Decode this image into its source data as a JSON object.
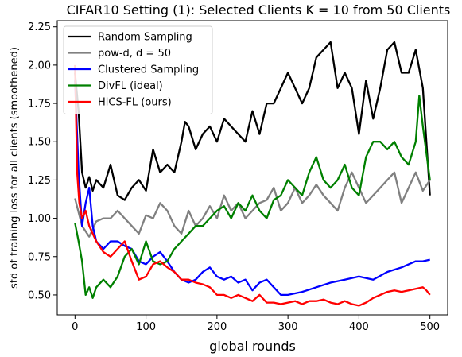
{
  "chart_data": {
    "type": "line",
    "title": "CIFAR10 Setting (1): Selected Clients K = 10 from 50 Clients",
    "xlabel": "global rounds",
    "ylabel": "std of training loss for all clients (smoothened)",
    "xlim": [
      -25,
      525
    ],
    "ylim": [
      0.37,
      2.29
    ],
    "xticks": [
      0,
      100,
      200,
      300,
      400,
      500
    ],
    "yticks": [
      0.5,
      0.75,
      1.0,
      1.25,
      1.5,
      1.75,
      2.0,
      2.25
    ],
    "ytick_labels": [
      "0.50",
      "0.75",
      "1.00",
      "1.25",
      "1.50",
      "1.75",
      "2.00",
      "2.25"
    ],
    "legend_position": "upper-left",
    "series": [
      {
        "name": "Random Sampling",
        "color": "#000000",
        "x": [
          0,
          5,
          10,
          15,
          20,
          25,
          30,
          40,
          50,
          60,
          70,
          80,
          90,
          100,
          110,
          120,
          130,
          140,
          150,
          155,
          160,
          170,
          180,
          190,
          200,
          210,
          220,
          230,
          240,
          250,
          260,
          270,
          280,
          290,
          300,
          310,
          320,
          330,
          340,
          350,
          360,
          370,
          380,
          390,
          400,
          410,
          420,
          430,
          440,
          450,
          460,
          470,
          480,
          490,
          500
        ],
        "y": [
          1.95,
          1.7,
          1.3,
          1.2,
          1.27,
          1.18,
          1.25,
          1.2,
          1.35,
          1.15,
          1.12,
          1.2,
          1.25,
          1.18,
          1.45,
          1.3,
          1.35,
          1.3,
          1.5,
          1.63,
          1.6,
          1.45,
          1.55,
          1.6,
          1.5,
          1.65,
          1.6,
          1.55,
          1.5,
          1.7,
          1.55,
          1.75,
          1.75,
          1.85,
          1.95,
          1.85,
          1.75,
          1.85,
          2.05,
          2.1,
          2.15,
          1.85,
          1.95,
          1.85,
          1.55,
          1.9,
          1.65,
          1.85,
          2.1,
          2.15,
          1.95,
          1.95,
          2.1,
          1.85,
          1.15
        ]
      },
      {
        "name": "pow-d, d = 50",
        "color": "#808080",
        "x": [
          0,
          10,
          20,
          30,
          40,
          50,
          60,
          70,
          80,
          90,
          100,
          110,
          120,
          130,
          140,
          150,
          160,
          170,
          180,
          190,
          200,
          210,
          220,
          230,
          240,
          250,
          260,
          270,
          280,
          290,
          300,
          310,
          320,
          330,
          340,
          350,
          360,
          370,
          380,
          390,
          400,
          410,
          420,
          430,
          440,
          450,
          460,
          470,
          480,
          490,
          500
        ],
        "y": [
          1.13,
          0.95,
          0.88,
          0.98,
          1.0,
          1.0,
          1.05,
          1.0,
          0.95,
          0.9,
          1.02,
          1.0,
          1.1,
          1.05,
          0.95,
          0.9,
          1.05,
          0.95,
          1.0,
          1.08,
          1.0,
          1.15,
          1.05,
          1.1,
          1.0,
          1.05,
          1.1,
          1.12,
          1.2,
          1.05,
          1.1,
          1.2,
          1.1,
          1.15,
          1.22,
          1.15,
          1.1,
          1.05,
          1.2,
          1.3,
          1.2,
          1.1,
          1.15,
          1.2,
          1.25,
          1.3,
          1.1,
          1.2,
          1.3,
          1.18,
          1.25
        ]
      },
      {
        "name": "Clustered Sampling",
        "color": "#0000ff",
        "x": [
          0,
          5,
          10,
          15,
          20,
          25,
          30,
          40,
          50,
          60,
          70,
          80,
          90,
          100,
          110,
          120,
          130,
          140,
          150,
          160,
          170,
          180,
          190,
          200,
          210,
          220,
          230,
          240,
          250,
          260,
          270,
          280,
          290,
          300,
          320,
          340,
          360,
          380,
          400,
          420,
          440,
          460,
          480,
          490,
          500
        ],
        "y": [
          1.9,
          1.3,
          0.95,
          1.1,
          1.2,
          0.95,
          0.85,
          0.8,
          0.85,
          0.85,
          0.82,
          0.8,
          0.72,
          0.7,
          0.75,
          0.78,
          0.72,
          0.65,
          0.6,
          0.58,
          0.6,
          0.65,
          0.68,
          0.62,
          0.6,
          0.62,
          0.58,
          0.6,
          0.53,
          0.58,
          0.6,
          0.55,
          0.5,
          0.5,
          0.52,
          0.55,
          0.58,
          0.6,
          0.62,
          0.6,
          0.65,
          0.68,
          0.72,
          0.72,
          0.73
        ]
      },
      {
        "name": "DivFL (ideal)",
        "color": "#008000",
        "x": [
          0,
          5,
          10,
          15,
          20,
          25,
          30,
          40,
          50,
          60,
          70,
          80,
          90,
          100,
          110,
          120,
          130,
          140,
          150,
          160,
          170,
          180,
          190,
          200,
          210,
          220,
          230,
          240,
          250,
          260,
          270,
          280,
          290,
          300,
          310,
          320,
          330,
          340,
          350,
          360,
          370,
          380,
          390,
          400,
          410,
          420,
          430,
          440,
          450,
          460,
          470,
          480,
          485,
          490,
          500
        ],
        "y": [
          0.97,
          0.85,
          0.72,
          0.5,
          0.55,
          0.48,
          0.55,
          0.6,
          0.55,
          0.62,
          0.75,
          0.8,
          0.7,
          0.85,
          0.72,
          0.7,
          0.72,
          0.8,
          0.85,
          0.9,
          0.95,
          0.95,
          1.0,
          1.05,
          1.08,
          1.0,
          1.1,
          1.05,
          1.15,
          1.05,
          1.0,
          1.12,
          1.15,
          1.25,
          1.2,
          1.15,
          1.3,
          1.4,
          1.25,
          1.2,
          1.25,
          1.35,
          1.2,
          1.15,
          1.4,
          1.5,
          1.5,
          1.45,
          1.5,
          1.4,
          1.35,
          1.5,
          1.8,
          1.6,
          1.25
        ]
      },
      {
        "name": "HiCS-FL (ours)",
        "color": "#ff0000",
        "x": [
          0,
          3,
          6,
          10,
          15,
          20,
          25,
          30,
          40,
          50,
          60,
          70,
          80,
          90,
          100,
          110,
          120,
          130,
          140,
          150,
          160,
          170,
          180,
          190,
          200,
          210,
          220,
          230,
          240,
          250,
          260,
          270,
          280,
          290,
          300,
          310,
          320,
          330,
          340,
          350,
          360,
          370,
          380,
          390,
          400,
          410,
          420,
          430,
          440,
          450,
          460,
          470,
          480,
          490,
          495,
          500
        ],
        "y": [
          2.0,
          1.3,
          1.1,
          1.0,
          1.05,
          0.95,
          0.9,
          0.85,
          0.78,
          0.75,
          0.8,
          0.85,
          0.72,
          0.6,
          0.62,
          0.7,
          0.72,
          0.68,
          0.65,
          0.6,
          0.6,
          0.58,
          0.57,
          0.55,
          0.5,
          0.5,
          0.48,
          0.5,
          0.48,
          0.46,
          0.5,
          0.45,
          0.45,
          0.44,
          0.45,
          0.46,
          0.44,
          0.46,
          0.46,
          0.47,
          0.45,
          0.44,
          0.46,
          0.44,
          0.43,
          0.45,
          0.48,
          0.5,
          0.52,
          0.53,
          0.52,
          0.53,
          0.54,
          0.55,
          0.53,
          0.5
        ]
      }
    ]
  }
}
